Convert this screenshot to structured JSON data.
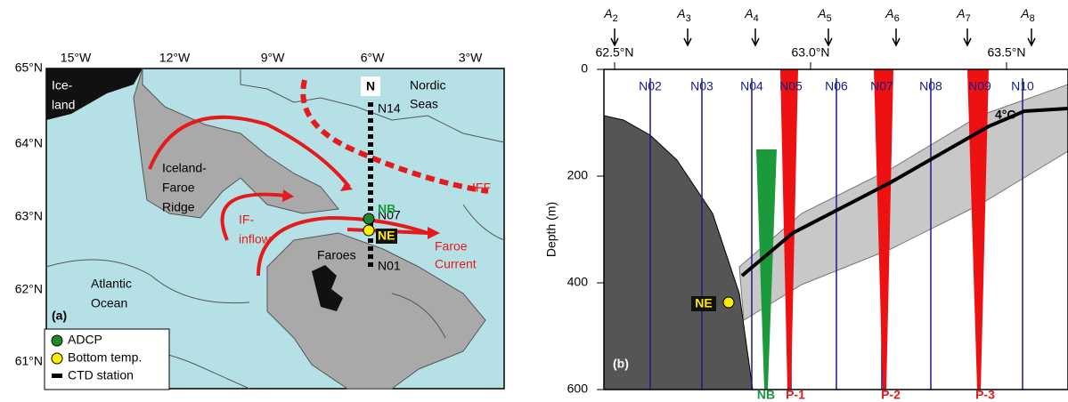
{
  "panel_a": {
    "label": "(a)",
    "lon_labels": [
      "15°W",
      "12°W",
      "9°W",
      "6°W",
      "3°W"
    ],
    "lat_labels": [
      "65°N",
      "64°N",
      "63°N",
      "62°N",
      "61°N"
    ],
    "places": [
      {
        "lines": [
          "Ice-",
          "land"
        ]
      },
      {
        "lines": [
          "Iceland-",
          "Faroe",
          "Ridge"
        ]
      },
      {
        "lines": [
          "Nordic",
          "Seas"
        ]
      },
      {
        "lines": [
          "Atlantic",
          "Ocean"
        ]
      },
      {
        "lines": [
          "Faroes"
        ]
      }
    ],
    "section": "N",
    "stations": [
      "N14",
      "N07",
      "N01"
    ],
    "moorings": [
      "NB",
      "NE"
    ],
    "currents": [
      {
        "lines": [
          "IF-",
          "inflow"
        ]
      },
      {
        "lines": [
          "Faroe",
          "Current"
        ]
      },
      {
        "lines": [
          "IFF"
        ]
      }
    ],
    "legend": [
      "ADCP",
      "Bottom temp.",
      "CTD station"
    ]
  },
  "panel_b": {
    "label": "(b)",
    "arrows": [
      {
        "base": "A",
        "sub": "2"
      },
      {
        "base": "A",
        "sub": "3"
      },
      {
        "base": "A",
        "sub": "4"
      },
      {
        "base": "A",
        "sub": "5"
      },
      {
        "base": "A",
        "sub": "6"
      },
      {
        "base": "A",
        "sub": "7"
      },
      {
        "base": "A",
        "sub": "8"
      }
    ],
    "lat_labels": [
      "62.5°N",
      "63.0°N",
      "63.5°N"
    ],
    "stations": [
      "N02",
      "N03",
      "N04",
      "N05",
      "N06",
      "N07",
      "N08",
      "N09",
      "N10"
    ],
    "depth_axis": {
      "label": "Depth (m)",
      "ylim": [
        0,
        600
      ],
      "ticks": [
        0,
        200,
        400,
        600
      ]
    },
    "isotherm": "4°C",
    "moorings": [
      "NE",
      "NB",
      "P-1",
      "P-2",
      "P-3"
    ]
  }
}
